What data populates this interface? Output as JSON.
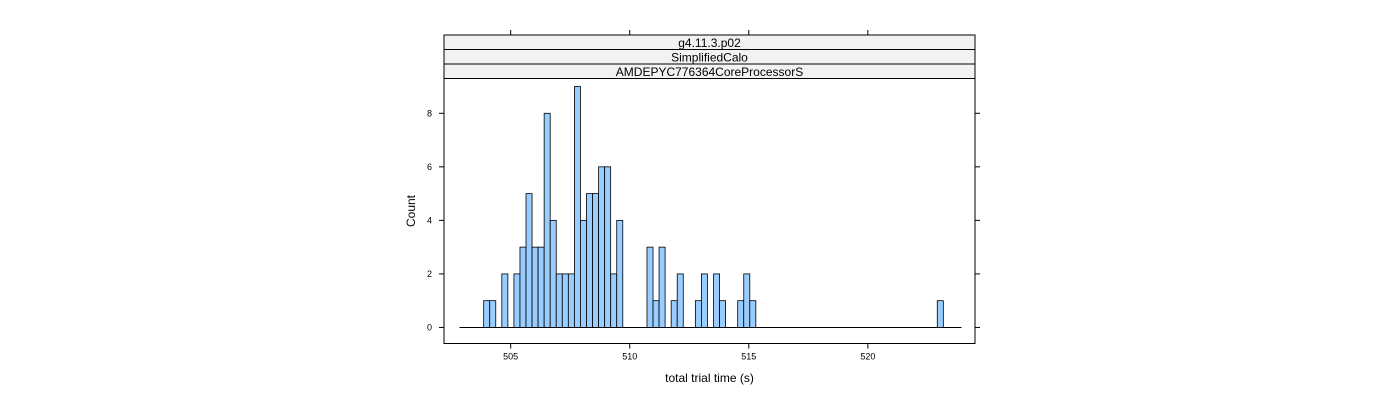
{
  "colors": {
    "bar_fill": "#99ccff",
    "bar_stroke": "#000000",
    "strip_fill": "#f2f2f2",
    "frame": "#000000"
  },
  "chart_data": {
    "type": "bar",
    "subtype": "histogram",
    "strips": [
      "g4.11.3.p02",
      "SimplifiedCalo",
      "AMDEPYC776364CoreProcessorS"
    ],
    "xlabel": "total trial time (s)",
    "ylabel": "Count",
    "xlim": [
      502.2,
      524.5
    ],
    "ylim": [
      -0.6,
      9.3
    ],
    "xticks": [
      505,
      510,
      515,
      520
    ],
    "yticks": [
      0,
      2,
      4,
      6,
      8
    ],
    "bin_start": 502.85,
    "bin_width": 0.254,
    "counts": [
      0,
      0,
      0,
      0,
      1,
      1,
      0,
      2,
      0,
      2,
      3,
      5,
      3,
      3,
      8,
      4,
      2,
      2,
      2,
      9,
      4,
      5,
      5,
      6,
      6,
      2,
      4,
      0,
      0,
      0,
      0,
      3,
      1,
      3,
      0,
      1,
      2,
      0,
      0,
      1,
      2,
      0,
      2,
      1,
      0,
      0,
      1,
      2,
      1,
      0,
      0,
      0,
      0,
      0,
      0,
      0,
      0,
      0,
      0,
      0,
      0,
      0,
      0,
      0,
      0,
      0,
      0,
      0,
      0,
      0,
      0,
      0,
      0,
      0,
      0,
      0,
      0,
      0,
      0,
      1,
      0,
      0,
      0
    ]
  }
}
